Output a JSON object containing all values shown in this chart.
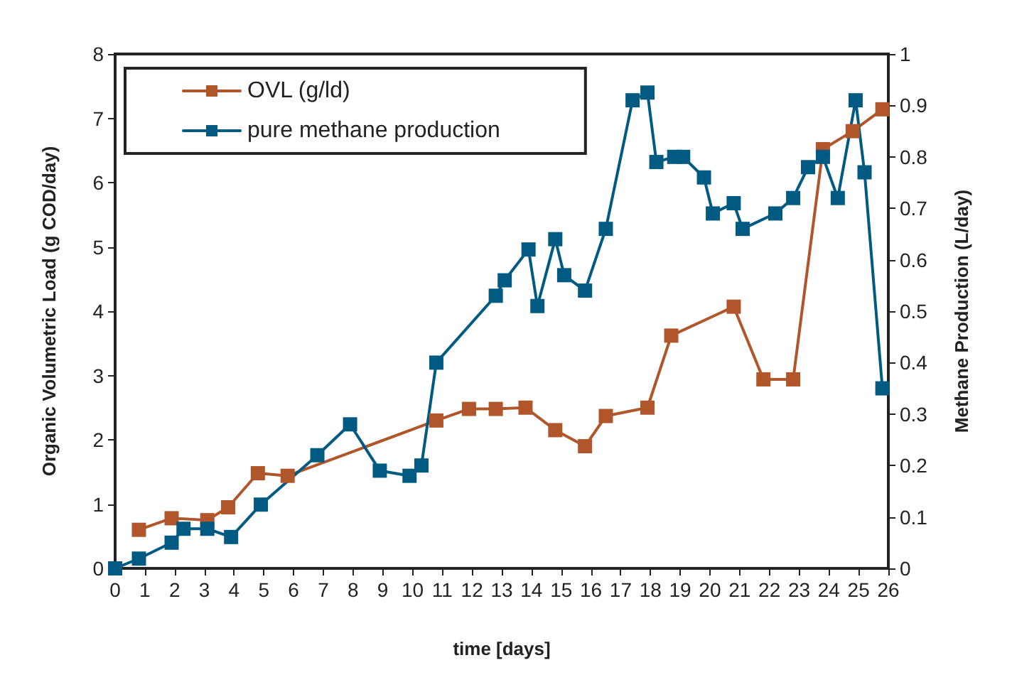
{
  "chart_data": {
    "type": "line",
    "xlabel": "time [days]",
    "ylabel": "Organic Volumetric Load (g COD/day)",
    "y2label": "Methane Production (L/day)",
    "xlim": [
      0,
      26
    ],
    "xticks": [
      0,
      1,
      2,
      3,
      4,
      5,
      6,
      7,
      8,
      9,
      10,
      11,
      12,
      13,
      14,
      15,
      16,
      17,
      18,
      19,
      20,
      21,
      22,
      23,
      24,
      25,
      26
    ],
    "ylim": [
      0,
      8
    ],
    "yticks": [
      0,
      1,
      2,
      3,
      4,
      5,
      6,
      7,
      8
    ],
    "y2lim": [
      0,
      1
    ],
    "y2ticks": [
      0,
      0.1,
      0.2,
      0.3,
      0.4,
      0.5,
      0.6,
      0.7,
      0.8,
      0.9,
      1
    ],
    "grid": false,
    "legend": "top left",
    "marker": "square",
    "line_style": "solid",
    "series": [
      {
        "name": "OVL (g/ld)",
        "color": "#b0562a",
        "x": [
          0.8,
          1.9,
          3.1,
          3.8,
          4.8,
          5.8,
          10.8,
          11.9,
          12.8,
          13.8,
          14.8,
          15.8,
          16.5,
          17.9,
          18.7,
          20.8,
          21.8,
          22.8,
          23.8,
          24.8,
          25.8
        ],
        "values": [
          0.6,
          0.78,
          0.75,
          0.95,
          1.48,
          1.44,
          2.3,
          2.48,
          2.48,
          2.5,
          2.15,
          1.9,
          2.37,
          2.5,
          3.62,
          4.07,
          2.94,
          2.94,
          6.52,
          6.8,
          7.14
        ]
      },
      {
        "name": "pure methane production",
        "color": "#005a82",
        "axis": "y2",
        "x": [
          0,
          0.8,
          1.9,
          2.3,
          3.1,
          3.9,
          4.9,
          6.8,
          7.9,
          8.9,
          9.9,
          10.3,
          10.8,
          12.8,
          13.1,
          13.9,
          14.2,
          14.8,
          15.1,
          15.8,
          16.5,
          17.4,
          17.9,
          18.2,
          18.8,
          19.1,
          19.8,
          20.1,
          20.8,
          21.1,
          22.2,
          22.8,
          23.3,
          23.8,
          24.3,
          24.9,
          25.2,
          25.8
        ],
        "values": [
          0,
          0.019,
          0.05,
          0.077,
          0.077,
          0.061,
          0.124,
          0.22,
          0.28,
          0.19,
          0.18,
          0.2,
          0.4,
          0.53,
          0.56,
          0.62,
          0.51,
          0.64,
          0.57,
          0.54,
          0.66,
          0.91,
          0.925,
          0.79,
          0.8,
          0.8,
          0.76,
          0.69,
          0.71,
          0.66,
          0.69,
          0.72,
          0.78,
          0.8,
          0.72,
          0.91,
          0.77,
          0.35
        ]
      }
    ]
  }
}
